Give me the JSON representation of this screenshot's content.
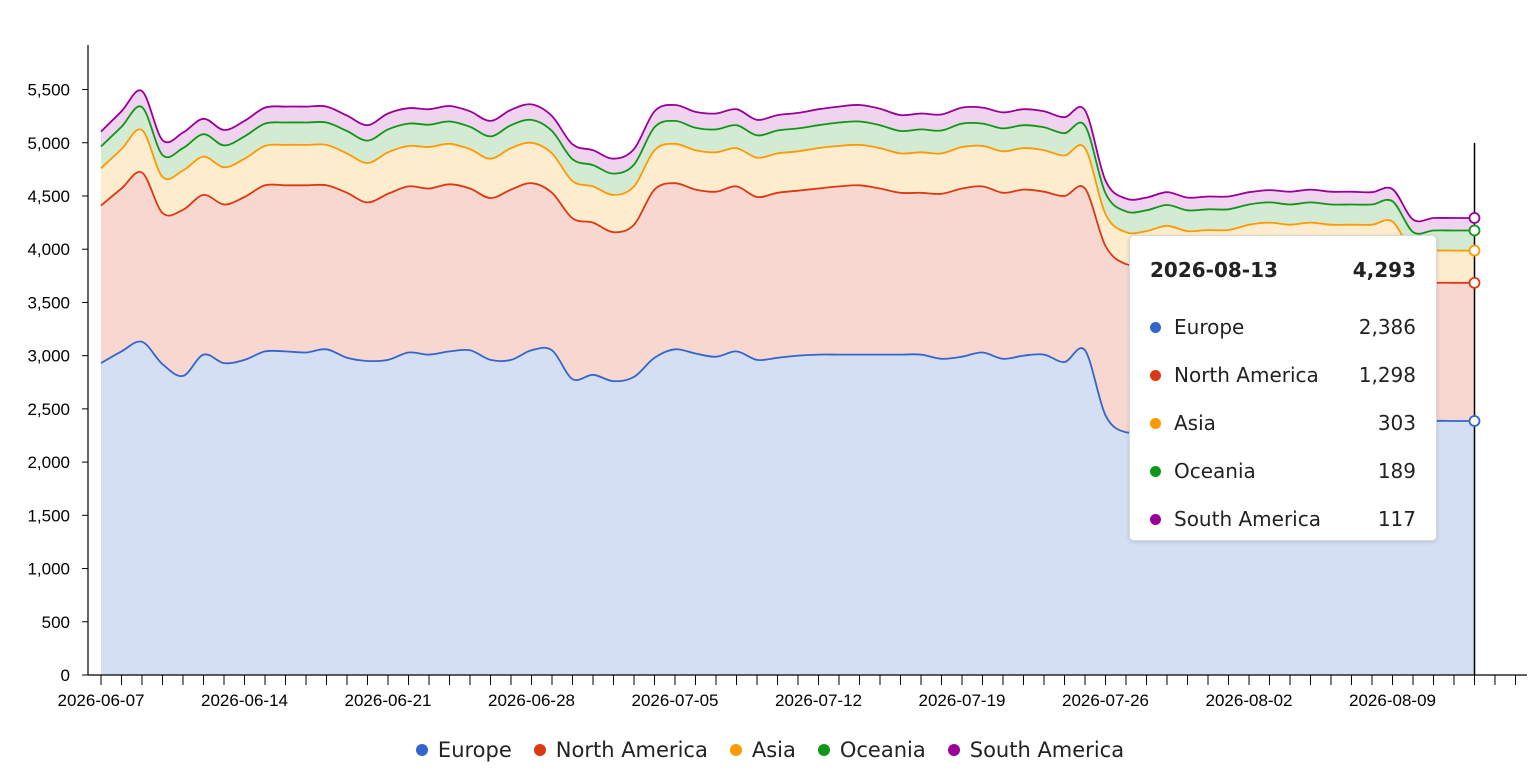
{
  "chart_data": {
    "type": "area",
    "stacked": true,
    "x_start": "2026-06-07",
    "x_tick_labels": [
      "2026-06-07",
      "2026-06-14",
      "2026-06-21",
      "2026-06-28",
      "2026-07-05",
      "2026-07-12",
      "2026-07-19",
      "2026-07-26",
      "2026-08-02",
      "2026-08-09"
    ],
    "y_tick_labels": [
      "0",
      "500",
      "1,000",
      "1,500",
      "2,000",
      "2,500",
      "3,000",
      "3,500",
      "4,000",
      "4,500",
      "5,000",
      "5,500"
    ],
    "ylim": [
      0,
      5500
    ],
    "grid": false,
    "legend_position": "bottom",
    "x": [
      "2026-06-07",
      "2026-06-08",
      "2026-06-09",
      "2026-06-10",
      "2026-06-11",
      "2026-06-12",
      "2026-06-13",
      "2026-06-14",
      "2026-06-15",
      "2026-06-16",
      "2026-06-17",
      "2026-06-18",
      "2026-06-19",
      "2026-06-20",
      "2026-06-21",
      "2026-06-22",
      "2026-06-23",
      "2026-06-24",
      "2026-06-25",
      "2026-06-26",
      "2026-06-27",
      "2026-06-28",
      "2026-06-29",
      "2026-06-30",
      "2026-07-01",
      "2026-07-02",
      "2026-07-03",
      "2026-07-04",
      "2026-07-05",
      "2026-07-06",
      "2026-07-07",
      "2026-07-08",
      "2026-07-09",
      "2026-07-10",
      "2026-07-11",
      "2026-07-12",
      "2026-07-13",
      "2026-07-14",
      "2026-07-15",
      "2026-07-16",
      "2026-07-17",
      "2026-07-18",
      "2026-07-19",
      "2026-07-20",
      "2026-07-21",
      "2026-07-22",
      "2026-07-23",
      "2026-07-24",
      "2026-07-25",
      "2026-07-26",
      "2026-07-27",
      "2026-07-28",
      "2026-07-29",
      "2026-07-30",
      "2026-07-31",
      "2026-08-01",
      "2026-08-02",
      "2026-08-03",
      "2026-08-04",
      "2026-08-05",
      "2026-08-06",
      "2026-08-07",
      "2026-08-08",
      "2026-08-09",
      "2026-08-10",
      "2026-08-11",
      "2026-08-12",
      "2026-08-13"
    ],
    "series": [
      {
        "name": "Europe",
        "color": "#3366cc",
        "fill": "#d4dff4",
        "values": [
          2930,
          3040,
          3130,
          2920,
          2810,
          3010,
          2930,
          2960,
          3040,
          3040,
          3030,
          3060,
          2980,
          2950,
          2960,
          3030,
          3010,
          3040,
          3050,
          2960,
          2960,
          3050,
          3050,
          2780,
          2820,
          2760,
          2800,
          2980,
          3060,
          3020,
          2990,
          3040,
          2960,
          2980,
          3000,
          3010,
          3010,
          3010,
          3010,
          3010,
          3010,
          2970,
          2990,
          3030,
          2970,
          3000,
          3010,
          2940,
          3050,
          2440,
          2280,
          2330,
          2360,
          2320,
          2350,
          2330,
          2360,
          2370,
          2340,
          2350,
          2320,
          2330,
          2330,
          2360,
          2360,
          2386,
          2386,
          2386
        ]
      },
      {
        "name": "North America",
        "color": "#dc3912",
        "fill": "#f8d7d0",
        "values": [
          1480,
          1530,
          1590,
          1420,
          1560,
          1500,
          1490,
          1530,
          1560,
          1560,
          1570,
          1540,
          1550,
          1490,
          1560,
          1560,
          1560,
          1570,
          1520,
          1520,
          1600,
          1570,
          1480,
          1510,
          1430,
          1400,
          1430,
          1580,
          1560,
          1540,
          1550,
          1550,
          1530,
          1550,
          1550,
          1560,
          1580,
          1590,
          1560,
          1520,
          1520,
          1550,
          1580,
          1560,
          1560,
          1560,
          1530,
          1560,
          1520,
          1590,
          1580,
          1540,
          1560,
          1550,
          1530,
          1550,
          1570,
          1580,
          1590,
          1600,
          1610,
          1600,
          1600,
          1600,
          1310,
          1298,
          1298,
          1298
        ]
      },
      {
        "name": "Asia",
        "color": "#ff9900",
        "fill": "#fdeccd",
        "values": [
          350,
          370,
          400,
          340,
          370,
          360,
          350,
          360,
          370,
          380,
          380,
          380,
          370,
          370,
          390,
          380,
          390,
          380,
          370,
          370,
          390,
          380,
          370,
          350,
          340,
          350,
          360,
          370,
          370,
          370,
          370,
          360,
          370,
          370,
          370,
          380,
          380,
          380,
          380,
          370,
          380,
          380,
          390,
          380,
          390,
          390,
          390,
          380,
          380,
          300,
          300,
          300,
          300,
          300,
          300,
          300,
          300,
          300,
          300,
          300,
          300,
          300,
          300,
          300,
          303,
          303,
          303,
          303
        ]
      },
      {
        "name": "Oceania",
        "color": "#109618",
        "fill": "#d3ebd3",
        "values": [
          205,
          210,
          215,
          205,
          210,
          210,
          205,
          210,
          210,
          210,
          210,
          210,
          210,
          210,
          215,
          210,
          210,
          210,
          210,
          210,
          215,
          215,
          210,
          205,
          200,
          200,
          205,
          215,
          215,
          210,
          215,
          215,
          210,
          215,
          215,
          215,
          220,
          220,
          215,
          210,
          215,
          215,
          220,
          210,
          215,
          215,
          215,
          210,
          210,
          195,
          195,
          195,
          195,
          195,
          195,
          195,
          190,
          190,
          190,
          190,
          190,
          190,
          190,
          190,
          189,
          189,
          189,
          189
        ]
      },
      {
        "name": "South America",
        "color": "#990099",
        "fill": "#efd3ef",
        "values": [
          140,
          145,
          150,
          140,
          145,
          145,
          145,
          145,
          150,
          150,
          150,
          150,
          145,
          145,
          150,
          145,
          145,
          145,
          145,
          145,
          145,
          145,
          140,
          140,
          140,
          140,
          145,
          150,
          150,
          150,
          150,
          150,
          145,
          145,
          145,
          150,
          150,
          155,
          155,
          150,
          150,
          150,
          150,
          150,
          150,
          150,
          150,
          150,
          145,
          120,
          120,
          120,
          120,
          120,
          120,
          120,
          115,
          115,
          120,
          120,
          120,
          120,
          115,
          115,
          117,
          117,
          117,
          117
        ]
      }
    ]
  },
  "tooltip": {
    "date": "2026-08-13",
    "total": "4,293",
    "rows": [
      {
        "name": "Europe",
        "value": "2,386",
        "color": "#3366cc"
      },
      {
        "name": "North America",
        "value": "1,298",
        "color": "#dc3912"
      },
      {
        "name": "Asia",
        "value": "303",
        "color": "#ff9900"
      },
      {
        "name": "Oceania",
        "value": "189",
        "color": "#109618"
      },
      {
        "name": "South America",
        "value": "117",
        "color": "#990099"
      }
    ]
  },
  "legend": [
    {
      "name": "Europe",
      "color": "#3366cc"
    },
    {
      "name": "North America",
      "color": "#dc3912"
    },
    {
      "name": "Asia",
      "color": "#ff9900"
    },
    {
      "name": "Oceania",
      "color": "#109618"
    },
    {
      "name": "South America",
      "color": "#990099"
    }
  ]
}
